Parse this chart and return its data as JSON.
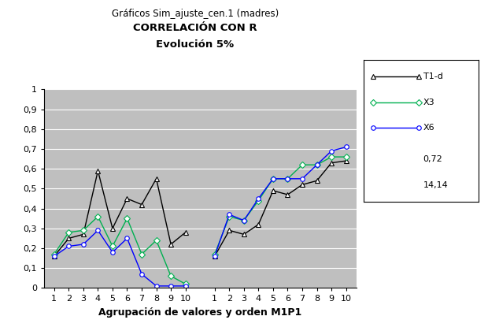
{
  "title_line1": "Gráficos Sim_ajuste_cen.1 (madres)",
  "title_line2": "CORRELACIÓN CON R",
  "title_line3": "Evolución 5%",
  "xlabel": "Agrupación de valores y orden M1P1",
  "ylim": [
    0,
    1
  ],
  "yticks": [
    0,
    0.1,
    0.2,
    0.3,
    0.4,
    0.5,
    0.6,
    0.7,
    0.8,
    0.9,
    1
  ],
  "ytick_labels": [
    "0",
    "0,1",
    "0,2",
    "0,3",
    "0,4",
    "0,5",
    "0,6",
    "0,7",
    "0,8",
    "0,9",
    "1"
  ],
  "T1d_group1": [
    0.16,
    0.25,
    0.27,
    0.59,
    0.3,
    0.45,
    0.42,
    0.55,
    0.22,
    0.28
  ],
  "T1d_group2": [
    0.16,
    0.29,
    0.27,
    0.32,
    0.49,
    0.47,
    0.52,
    0.54,
    0.63,
    0.64
  ],
  "X3_group1": [
    0.17,
    0.28,
    0.29,
    0.36,
    0.21,
    0.35,
    0.17,
    0.24,
    0.06,
    0.02
  ],
  "X3_group2": [
    0.17,
    0.36,
    0.34,
    0.44,
    0.55,
    0.55,
    0.62,
    0.62,
    0.66,
    0.66
  ],
  "X6_group1": [
    0.16,
    0.21,
    0.22,
    0.29,
    0.18,
    0.25,
    0.07,
    0.01,
    0.01,
    0.01
  ],
  "X6_group2": [
    0.16,
    0.37,
    0.34,
    0.45,
    0.55,
    0.55,
    0.55,
    0.62,
    0.69,
    0.71
  ],
  "color_T1d": "#000000",
  "color_X3": "#00b050",
  "color_X6": "#0000ff",
  "bg_color": "#bfbfbf",
  "legend_values": [
    "0,72",
    "14,14"
  ],
  "figsize": [
    6.2,
    4.2
  ],
  "dpi": 100
}
